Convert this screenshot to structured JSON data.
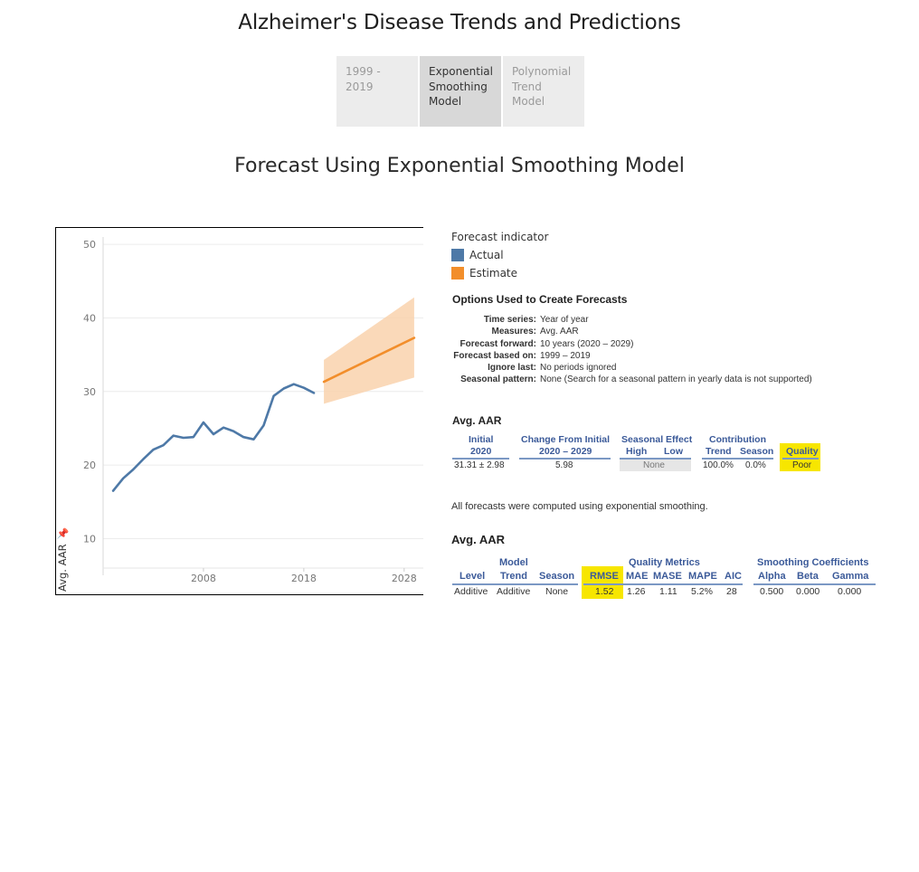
{
  "page": {
    "title": "Alzheimer's Disease Trends and Predictions",
    "subtitle": "Forecast Using Exponential Smoothing Model"
  },
  "tabs": [
    {
      "label": "1999 - 2019",
      "active": false
    },
    {
      "label": "Exponential Smoothing Model",
      "active": true
    },
    {
      "label": "Polynomial Trend Model",
      "active": false
    }
  ],
  "legend": {
    "title": "Forecast indicator",
    "items": [
      {
        "label": "Actual",
        "color": "#4e79a7"
      },
      {
        "label": "Estimate",
        "color": "#f28e2b"
      }
    ]
  },
  "options": {
    "title": "Options Used to Create Forecasts",
    "rows": [
      {
        "key": "Time series:",
        "value": "Year of year"
      },
      {
        "key": "Measures:",
        "value": "Avg. AAR"
      },
      {
        "key": "Forecast forward:",
        "value": "10 years (2020 – 2029)"
      },
      {
        "key": "Forecast based on:",
        "value": "1999 – 2019"
      },
      {
        "key": "Ignore last:",
        "value": "No periods ignored"
      },
      {
        "key": "Seasonal pattern:",
        "value": "None (Search for a seasonal pattern in yearly data is not supported)"
      }
    ]
  },
  "summary": {
    "title": "Avg. AAR",
    "initial_header": "Initial",
    "initial_year": "2020",
    "initial_value": "31.31 ± 2.98",
    "change_header": "Change From Initial",
    "change_range": "2020 – 2029",
    "change_value": "5.98",
    "seasonal_header": "Seasonal Effect",
    "high_header": "High",
    "low_header": "Low",
    "seasonal_value": "None",
    "contribution_header": "Contribution",
    "trend_header": "Trend",
    "season_header": "Season",
    "trend_value": "100.0%",
    "season_value": "0.0%",
    "quality_header": "Quality",
    "quality_value": "Poor"
  },
  "note": "All forecasts were computed using exponential smoothing.",
  "model": {
    "title": "Avg. AAR",
    "model_header": "Model",
    "quality_metrics_header": "Quality Metrics",
    "smoothing_header": "Smoothing Coefficients",
    "columns": [
      "Level",
      "Trend",
      "Season",
      "RMSE",
      "MAE",
      "MASE",
      "MAPE",
      "AIC",
      "Alpha",
      "Beta",
      "Gamma"
    ],
    "values": [
      "Additive",
      "Additive",
      "None",
      "1.52",
      "1.26",
      "1.11",
      "5.2%",
      "28",
      "0.500",
      "0.000",
      "0.000"
    ]
  },
  "chart_data": {
    "type": "line",
    "ylabel": "Avg. AAR",
    "xlim": [
      1998,
      2030
    ],
    "ylim": [
      6,
      51
    ],
    "y_ticks": [
      10,
      20,
      30,
      40,
      50
    ],
    "x_ticks": [
      2008,
      2018,
      2028
    ],
    "grid": true,
    "series": [
      {
        "name": "Actual",
        "color": "#4e79a7",
        "x": [
          1999,
          2000,
          2001,
          2002,
          2003,
          2004,
          2005,
          2006,
          2007,
          2008,
          2009,
          2010,
          2011,
          2012,
          2013,
          2014,
          2015,
          2016,
          2017,
          2018,
          2019
        ],
        "y": [
          16.5,
          18.2,
          19.4,
          20.8,
          22.1,
          22.7,
          24.0,
          23.7,
          23.8,
          25.8,
          24.2,
          25.1,
          24.6,
          23.8,
          23.5,
          25.4,
          29.4,
          30.4,
          31.0,
          30.5,
          29.8
        ]
      },
      {
        "name": "Estimate",
        "color": "#f28e2b",
        "x": [
          2020,
          2029
        ],
        "y": [
          31.31,
          37.29
        ]
      }
    ],
    "prediction_interval": {
      "x": [
        2020,
        2029
      ],
      "upper": [
        34.29,
        42.8
      ],
      "lower": [
        28.33,
        31.9
      ],
      "color": "#f9d2ad"
    }
  }
}
